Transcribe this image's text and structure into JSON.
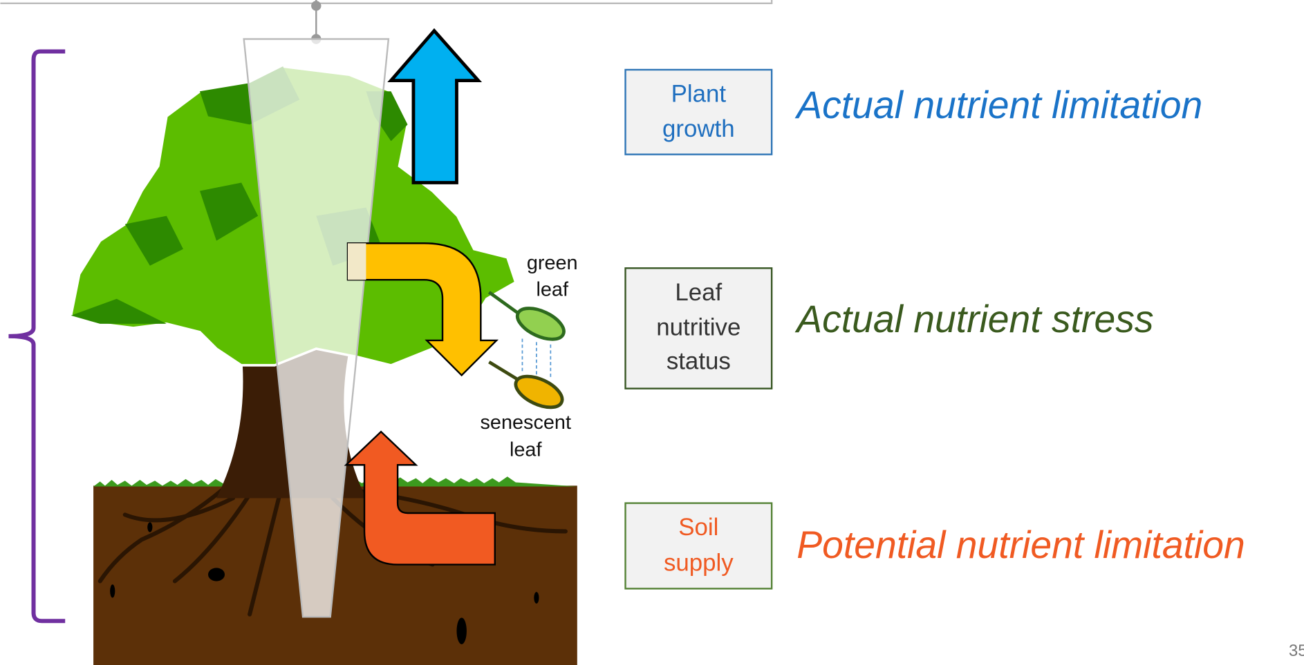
{
  "boxes": [
    {
      "lines": [
        "Plant",
        "growth"
      ],
      "label": "Actual nutrient limitation"
    },
    {
      "lines": [
        "Leaf",
        "nutritive",
        "status"
      ],
      "label": "Actual nutrient stress"
    },
    {
      "lines": [
        "Soil",
        "supply"
      ],
      "label": "Potential nutrient limitation"
    }
  ],
  "leaf_labels": {
    "green": [
      "green",
      "leaf"
    ],
    "senescent": [
      "senescent",
      "leaf"
    ]
  },
  "page_number": "35"
}
